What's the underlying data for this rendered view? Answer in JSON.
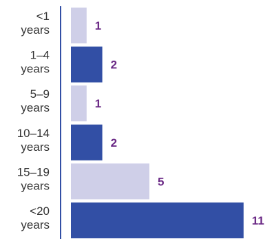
{
  "chart_data": {
    "type": "bar",
    "orientation": "horizontal",
    "categories": [
      [
        "<1",
        "years"
      ],
      [
        "1–4",
        "years"
      ],
      [
        "5–9",
        "years"
      ],
      [
        "10–14",
        "years"
      ],
      [
        "15–19",
        "years"
      ],
      [
        "<20",
        "years"
      ]
    ],
    "values": [
      1,
      2,
      1,
      2,
      5,
      11
    ],
    "value_labels": [
      "1",
      "2",
      "1",
      "2",
      "5",
      "11"
    ],
    "bar_colors": [
      "#cfcfe8",
      "#324fa5",
      "#cfcfe8",
      "#324fa5",
      "#cfcfe8",
      "#324fa5"
    ],
    "value_label_color": "#6b2a86",
    "axis_line_color": "#324fa5",
    "xlim": [
      0,
      11
    ],
    "grid": false,
    "legend": "none",
    "title": "",
    "xlabel": "",
    "ylabel": ""
  }
}
